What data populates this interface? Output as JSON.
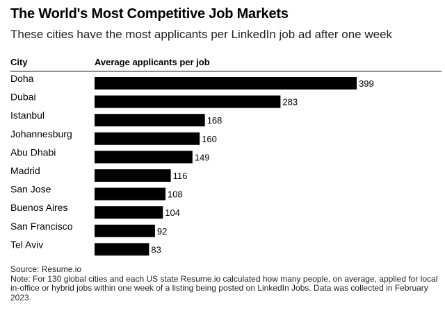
{
  "header": {
    "title": "The World's Most Competitive Job Markets",
    "subtitle": "These cities have the most applicants per LinkedIn job ad after one week"
  },
  "columns": {
    "city": "City",
    "value": "Average applicants per job"
  },
  "footer": {
    "source": "Source: Resume.io",
    "note": "Note: For 130 global cities and each US state Resume.io calculated how many people, on average, applied for local in-office or hybrid jobs within one week of a listing being posted on LinkedIn Jobs. Data was collected in February 2023."
  },
  "colors": {
    "bar": "#000000",
    "text": "#000000"
  },
  "chart_data": {
    "type": "bar",
    "orientation": "horizontal",
    "title": "The World's Most Competitive Job Markets",
    "subtitle": "These cities have the most applicants per LinkedIn job ad after one week",
    "xlabel": "Average applicants per job",
    "ylabel": "City",
    "categories": [
      "Doha",
      "Dubai",
      "Istanbul",
      "Johannesburg",
      "Abu Dhabi",
      "Madrid",
      "San Jose",
      "Buenos Aires",
      "San Francisco",
      "Tel Aviv"
    ],
    "values": [
      399,
      283,
      168,
      160,
      149,
      116,
      108,
      104,
      92,
      83
    ],
    "xlim": [
      0,
      399
    ],
    "grid": false,
    "legend": "none"
  }
}
